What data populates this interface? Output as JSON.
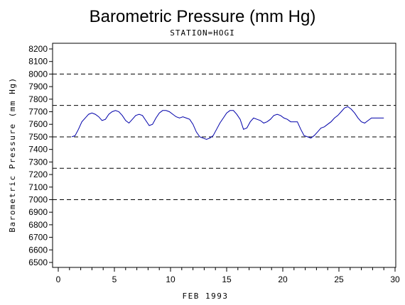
{
  "chart_data": {
    "type": "line",
    "title": "Barometric Pressure (mm Hg)",
    "subtitle": "STATION=HOGI",
    "xlabel": "FEB 1993",
    "ylabel": "Barometric Pressure (mm Hg)",
    "xlim": [
      0,
      30
    ],
    "ylim": [
      6500,
      8200
    ],
    "x_ticks": [
      0,
      5,
      10,
      15,
      20,
      25,
      30
    ],
    "y_ticks": [
      6500,
      6600,
      6700,
      6800,
      6900,
      7000,
      7100,
      7200,
      7300,
      7400,
      7500,
      7600,
      7700,
      7800,
      7900,
      8000,
      8100,
      8200
    ],
    "reference_lines": [
      7000,
      7250,
      7500,
      7750,
      8000
    ],
    "series_color": "#0000aa",
    "series": [
      {
        "x": [
          1.2,
          1.5,
          1.8,
          2.1,
          2.4,
          2.7,
          3.0,
          3.3,
          3.6,
          3.9,
          4.2,
          4.5,
          4.8,
          5.1,
          5.4,
          5.7,
          6.0,
          6.3,
          6.6,
          6.9,
          7.2,
          7.5,
          7.8,
          8.1,
          8.4,
          8.7,
          9.0,
          9.3,
          9.6,
          9.9,
          10.2,
          10.5,
          10.8,
          11.1,
          11.4,
          11.7,
          12.0,
          12.3,
          12.6,
          12.9,
          13.2,
          13.5,
          13.8,
          14.1,
          14.4,
          14.7,
          15.0,
          15.3,
          15.6,
          15.9,
          16.2,
          16.5,
          16.8,
          17.1,
          17.4,
          17.7,
          18.0,
          18.3,
          18.6,
          18.9,
          19.2,
          19.5,
          19.8,
          20.1,
          20.4,
          20.7,
          21.0,
          21.3,
          21.6,
          21.9,
          22.2,
          22.5,
          22.8,
          23.1,
          23.4,
          23.7,
          24.0,
          24.3,
          24.6,
          24.9,
          25.2,
          25.5,
          25.8,
          26.1,
          26.4,
          26.7,
          27.0,
          27.3,
          27.6,
          27.9,
          28.2,
          28.5,
          28.8,
          29.0
        ],
        "y": [
          7500,
          7510,
          7560,
          7620,
          7650,
          7680,
          7690,
          7680,
          7660,
          7630,
          7640,
          7680,
          7700,
          7710,
          7700,
          7670,
          7630,
          7610,
          7640,
          7670,
          7680,
          7670,
          7630,
          7590,
          7600,
          7650,
          7690,
          7710,
          7710,
          7700,
          7680,
          7660,
          7650,
          7660,
          7650,
          7640,
          7600,
          7540,
          7500,
          7490,
          7480,
          7490,
          7510,
          7560,
          7610,
          7650,
          7690,
          7710,
          7710,
          7680,
          7640,
          7560,
          7570,
          7620,
          7650,
          7640,
          7630,
          7610,
          7620,
          7640,
          7670,
          7680,
          7670,
          7650,
          7640,
          7620,
          7620,
          7620,
          7560,
          7510,
          7500,
          7490,
          7510,
          7540,
          7570,
          7580,
          7600,
          7620,
          7650,
          7670,
          7700,
          7730,
          7740,
          7720,
          7690,
          7650,
          7620,
          7610,
          7630,
          7650,
          7650,
          7650,
          7650,
          7650
        ]
      }
    ]
  }
}
